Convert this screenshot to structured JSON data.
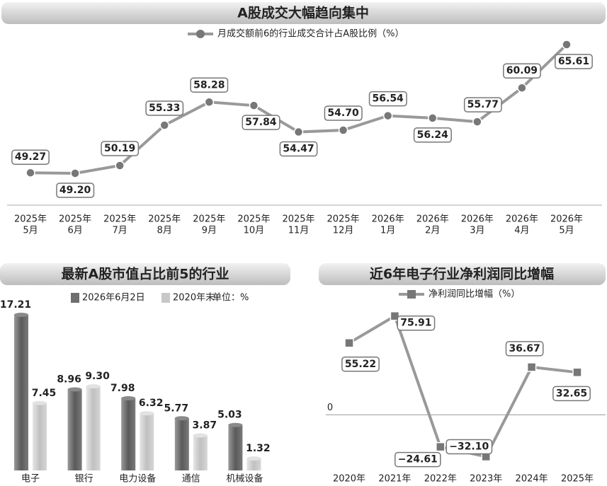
{
  "chart_data": [
    {
      "type": "line",
      "title": "A股成交大幅趋向集中",
      "marker": "circle",
      "categories": [
        [
          "2025年",
          "5月"
        ],
        [
          "2025年",
          "6月"
        ],
        [
          "2025年",
          "7月"
        ],
        [
          "2025年",
          "8月"
        ],
        [
          "2025年",
          "9月"
        ],
        [
          "2025年",
          "10月"
        ],
        [
          "2025年",
          "11月"
        ],
        [
          "2025年",
          "12月"
        ],
        [
          "2026年",
          "1月"
        ],
        [
          "2026年",
          "2月"
        ],
        [
          "2026年",
          "3月"
        ],
        [
          "2026年",
          "4月"
        ],
        [
          "2026年",
          "5月"
        ]
      ],
      "series": [
        {
          "name": "月成交额前6的行业成交合计占A股比例（%）",
          "color": "#8a8a8a",
          "values": [
            49.27,
            49.2,
            50.19,
            55.33,
            58.28,
            57.84,
            54.47,
            54.7,
            56.54,
            56.24,
            55.77,
            60.09,
            65.61
          ],
          "value_labels": [
            "49.27",
            "49.20",
            "50.19",
            "55.33",
            "58.28",
            "57.84",
            "54.47",
            "54.70",
            "56.54",
            "56.24",
            "55.77",
            "60.09",
            "65.61"
          ]
        }
      ]
    },
    {
      "type": "bar",
      "title": "最新A股市值占比前5的行业",
      "unit": "单位：%",
      "categories": [
        "电子",
        "银行",
        "电力设备",
        "通信",
        "机械设备"
      ],
      "series": [
        {
          "name": "2026年6月2日",
          "color": "#6e6e6e",
          "values": [
            17.21,
            8.96,
            7.98,
            5.77,
            5.03
          ],
          "value_labels": [
            "17.21",
            "8.96",
            "7.98",
            "5.77",
            "5.03"
          ]
        },
        {
          "name": "2020年末",
          "color": "#c8c8c8",
          "values": [
            7.45,
            9.3,
            6.32,
            3.87,
            1.32
          ],
          "value_labels": [
            "7.45",
            "9.30",
            "6.32",
            "3.87",
            "1.32"
          ]
        }
      ]
    },
    {
      "type": "line",
      "title": "近6年电子行业净利润同比增幅",
      "marker": "square",
      "categories": [
        "2020年",
        "2021年",
        "2022年",
        "2023年",
        "2024年",
        "2025年"
      ],
      "ylim": [
        -40,
        85
      ],
      "yticks": [
        0
      ],
      "series": [
        {
          "name": "净利润同比增幅（%）",
          "color": "#8a8a8a",
          "values": [
            55.22,
            75.91,
            -24.61,
            -32.1,
            36.67,
            32.65
          ],
          "value_labels": [
            "55.22",
            "75.91",
            "−24.61",
            "−32.10",
            "36.67",
            "32.65"
          ]
        }
      ]
    }
  ]
}
